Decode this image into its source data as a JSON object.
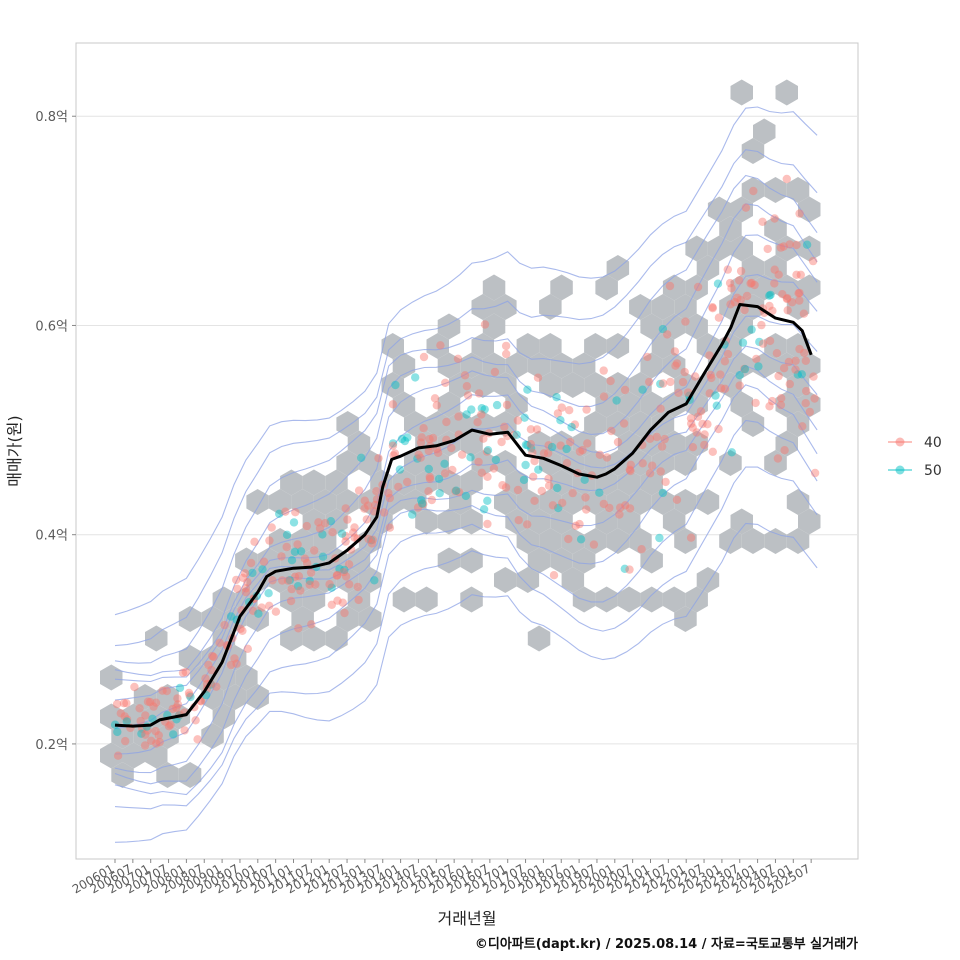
{
  "chart_data": {
    "type": "scatter",
    "xlabel": "거래년월",
    "ylabel": "매매가(원)",
    "caption": "©디아파트(dapt.kr) / 2025.08.14 / 자료=국토교통부 실거래가",
    "y_unit": "억",
    "ylim": [
      0.09,
      0.87
    ],
    "y_ticks": [
      {
        "value": 0.2,
        "label": "0.2억"
      },
      {
        "value": 0.4,
        "label": "0.4억"
      },
      {
        "value": 0.6,
        "label": "0.6억"
      },
      {
        "value": 0.8,
        "label": "0.8억"
      }
    ],
    "x_ticks": [
      "200601",
      "200607",
      "200701",
      "200707",
      "200801",
      "200807",
      "200901",
      "200907",
      "201001",
      "201007",
      "201101",
      "201107",
      "201201",
      "201207",
      "201301",
      "201307",
      "201401",
      "201407",
      "201501",
      "201507",
      "201601",
      "201607",
      "201701",
      "201707",
      "201801",
      "201807",
      "201901",
      "201907",
      "202001",
      "202007",
      "202101",
      "202107",
      "202201",
      "202207",
      "202301",
      "202307",
      "202401",
      "202407",
      "202501",
      "202507"
    ],
    "grid": true,
    "legend_position": "right",
    "legend": [
      {
        "name": "40",
        "color": "#F8766D"
      },
      {
        "name": "50",
        "color": "#00BFC4"
      }
    ],
    "hexbin_color": "#bcc0c4",
    "contour_color": "#8ea3e6",
    "trend_color": "#000000",
    "trend_line": {
      "x": [
        "200601",
        "200607",
        "200701",
        "200704",
        "200801",
        "200807",
        "200901",
        "200907",
        "201001",
        "201004",
        "201007",
        "201101",
        "201107",
        "201201",
        "201207",
        "201301",
        "201305",
        "201307",
        "201310",
        "201401",
        "201407",
        "201501",
        "201507",
        "201601",
        "201607",
        "201701",
        "201707",
        "201801",
        "201807",
        "201901",
        "201907",
        "201910",
        "202001",
        "202007",
        "202101",
        "202107",
        "202201",
        "202207",
        "202301",
        "202304",
        "202307",
        "202401",
        "202407",
        "202501",
        "202504",
        "202507"
      ],
      "y": [
        0.218,
        0.217,
        0.218,
        0.223,
        0.228,
        0.25,
        0.278,
        0.322,
        0.345,
        0.36,
        0.365,
        0.368,
        0.369,
        0.373,
        0.385,
        0.4,
        0.417,
        0.446,
        0.472,
        0.475,
        0.483,
        0.485,
        0.49,
        0.5,
        0.496,
        0.498,
        0.476,
        0.473,
        0.466,
        0.458,
        0.455,
        0.458,
        0.463,
        0.478,
        0.5,
        0.517,
        0.525,
        0.554,
        0.582,
        0.598,
        0.62,
        0.618,
        0.607,
        0.603,
        0.595,
        0.572
      ]
    }
  }
}
